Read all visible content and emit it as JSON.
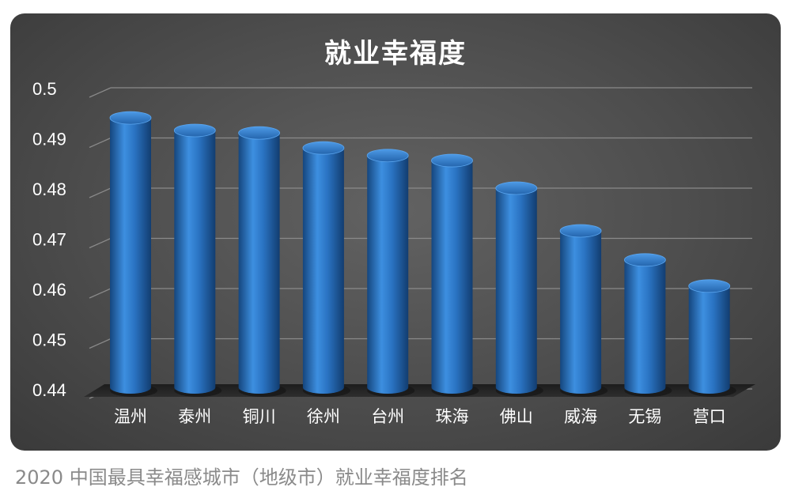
{
  "caption": "2020 中国最具幸福感城市（地级市）就业幸福度排名",
  "chart_data": {
    "type": "bar",
    "title": "就业幸福度",
    "xlabel": "",
    "ylabel": "",
    "categories": [
      "温州",
      "泰州",
      "铜川",
      "徐州",
      "台州",
      "珠海",
      "佛山",
      "威海",
      "无锡",
      "营口"
    ],
    "values": [
      0.494,
      0.4915,
      0.491,
      0.488,
      0.4865,
      0.4855,
      0.48,
      0.4715,
      0.4657,
      0.4605
    ],
    "ylim": [
      0.44,
      0.5
    ],
    "yticks": [
      "0.44",
      "0.45",
      "0.46",
      "0.47",
      "0.48",
      "0.49",
      "0.5"
    ],
    "grid": true,
    "legend": "none",
    "bar_color": "#2f7fd0"
  }
}
